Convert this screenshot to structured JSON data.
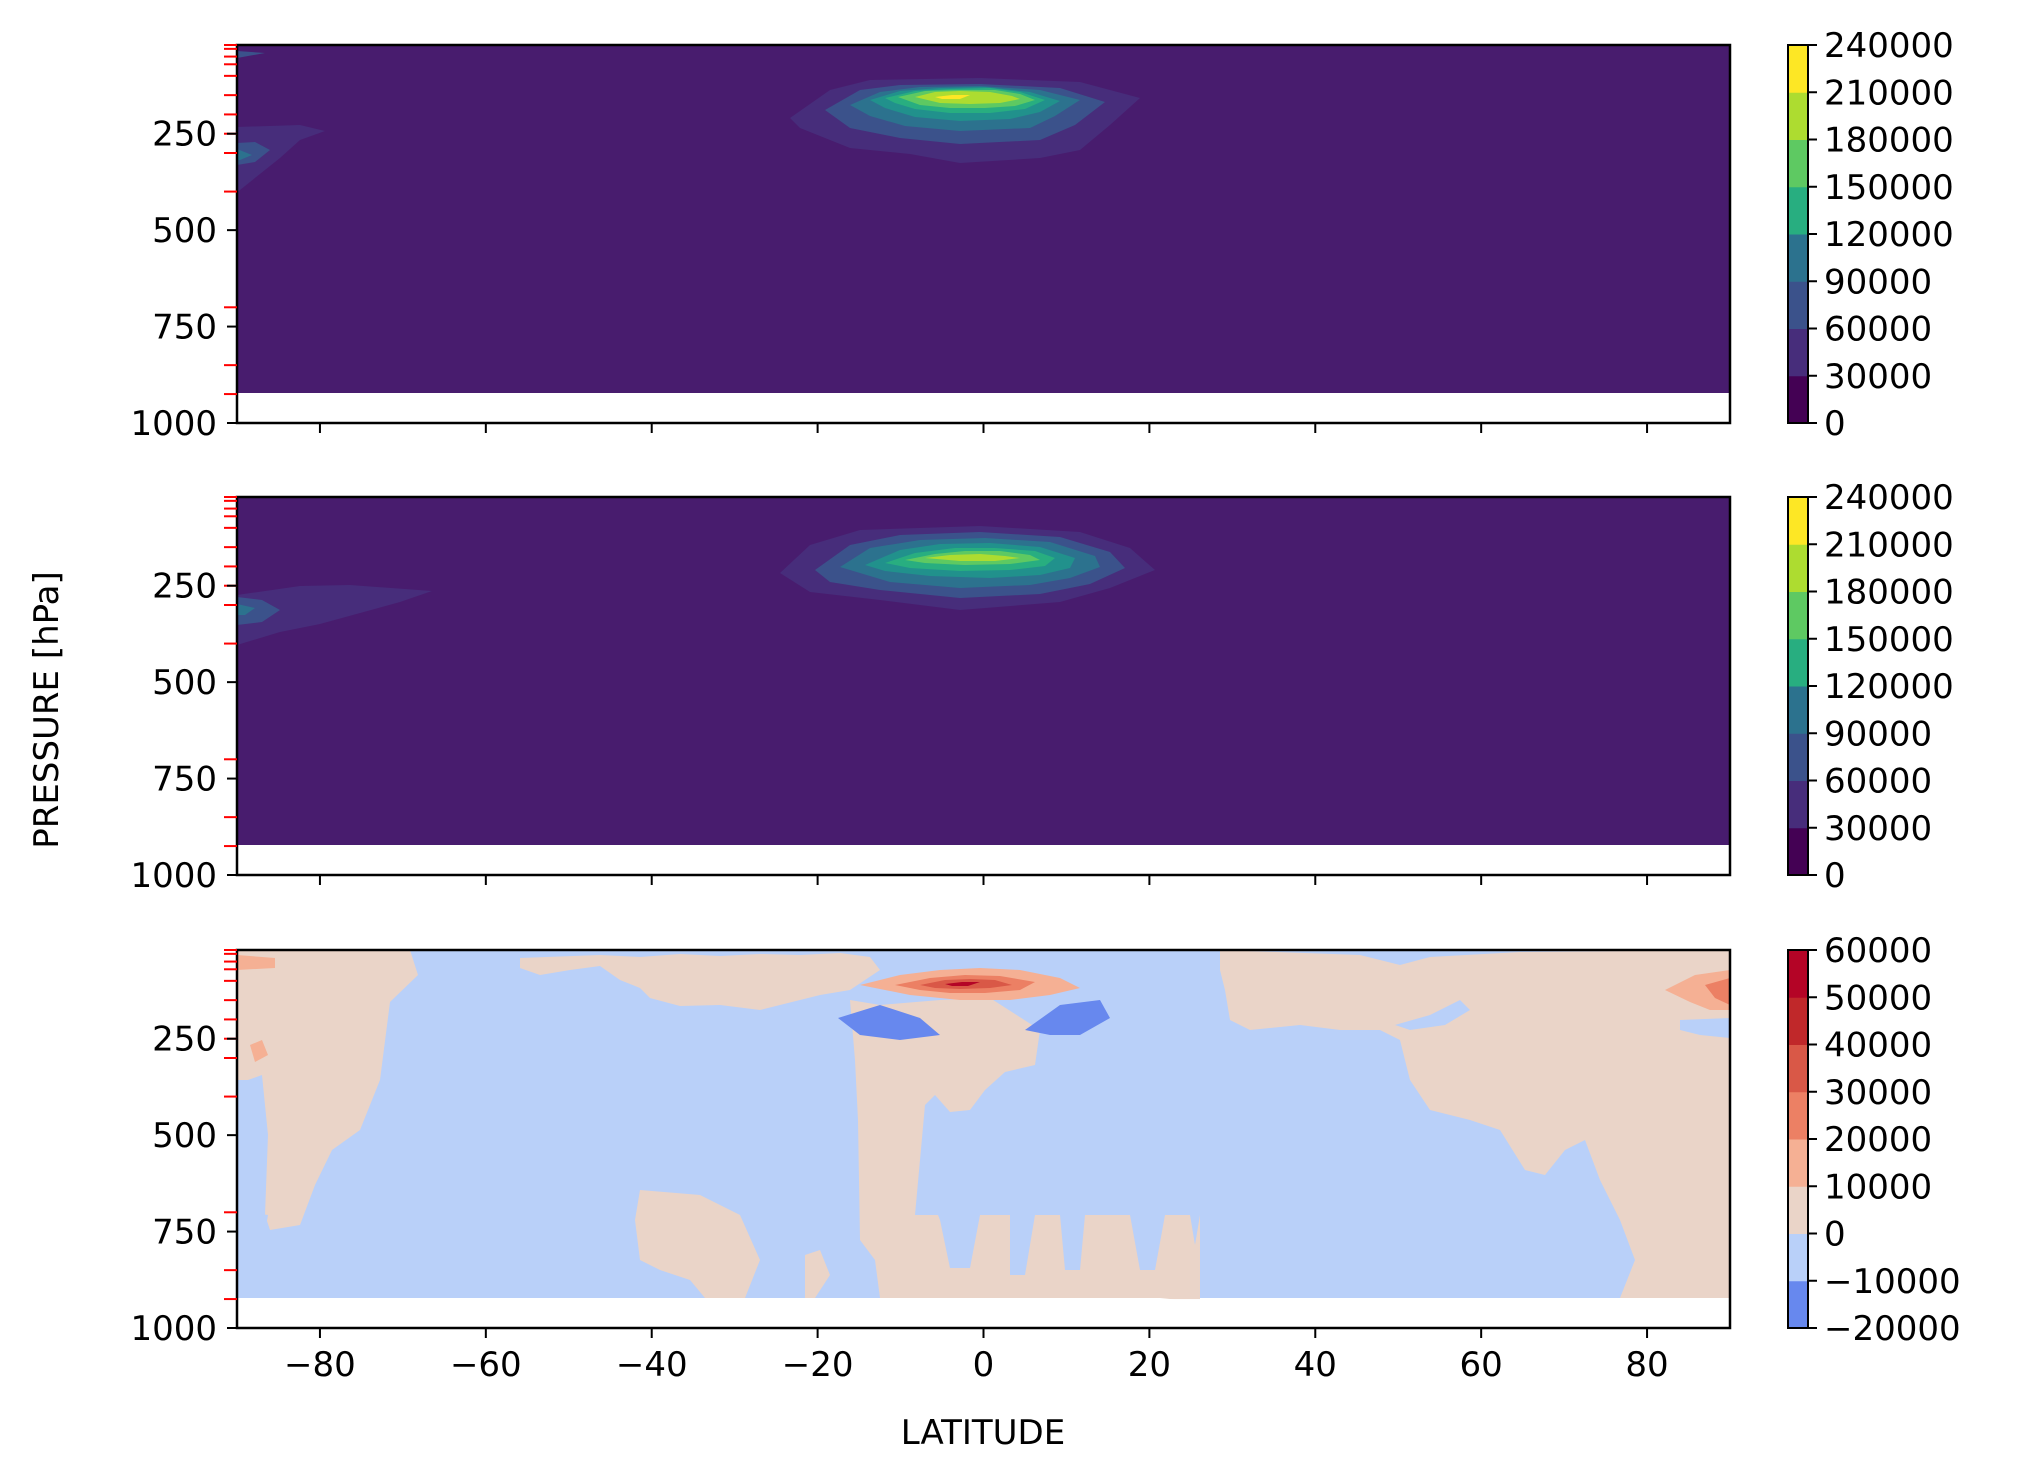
{
  "chart_data": [
    {
      "type": "contour",
      "panel": "top",
      "xlim": [
        -90,
        90
      ],
      "ylim": [
        1000,
        20
      ],
      "y_inverted": true,
      "x_ticks": [
        -80,
        -60,
        -40,
        -20,
        0,
        20,
        40,
        60,
        80
      ],
      "y_ticks": [
        250,
        500,
        750,
        1000
      ],
      "y_tick_labels": [
        "250",
        "500",
        "750",
        "1000"
      ],
      "pressure_levels_marked": [
        20,
        30,
        50,
        70,
        100,
        150,
        200,
        250,
        300,
        400,
        700,
        850,
        925
      ],
      "data_bottom_pressure": 925,
      "colormap": "viridis",
      "colorbar_levels": [
        0,
        30000,
        60000,
        90000,
        120000,
        150000,
        180000,
        210000,
        240000
      ],
      "colorbar_tick_labels": [
        "0",
        "30000",
        "60000",
        "90000",
        "120000",
        "150000",
        "180000",
        "210000",
        "240000"
      ],
      "features": [
        {
          "kind": "maximum",
          "lat": -3,
          "pressure": 150,
          "peak": 225000
        },
        {
          "kind": "maximum",
          "lat": -90,
          "pressure": 300,
          "peak": 100000
        }
      ]
    },
    {
      "type": "contour",
      "panel": "middle",
      "xlim": [
        -90,
        90
      ],
      "ylim": [
        1000,
        20
      ],
      "y_inverted": true,
      "x_ticks": [
        -80,
        -60,
        -40,
        -20,
        0,
        20,
        40,
        60,
        80
      ],
      "y_ticks": [
        250,
        500,
        750,
        1000
      ],
      "y_tick_labels": [
        "250",
        "500",
        "750",
        "1000"
      ],
      "pressure_levels_marked": [
        20,
        30,
        50,
        70,
        100,
        150,
        200,
        250,
        300,
        400,
        700,
        850,
        925
      ],
      "data_bottom_pressure": 925,
      "colormap": "viridis",
      "colorbar_levels": [
        0,
        30000,
        60000,
        90000,
        120000,
        150000,
        180000,
        210000,
        240000
      ],
      "colorbar_tick_labels": [
        "0",
        "30000",
        "60000",
        "90000",
        "120000",
        "150000",
        "180000",
        "210000",
        "240000"
      ],
      "features": [
        {
          "kind": "maximum",
          "lat": -2,
          "pressure": 150,
          "peak": 200000
        },
        {
          "kind": "maximum",
          "lat": -90,
          "pressure": 300,
          "peak": 100000
        }
      ]
    },
    {
      "type": "contour",
      "panel": "bottom",
      "xlim": [
        -90,
        90
      ],
      "ylim": [
        1000,
        20
      ],
      "y_inverted": true,
      "x_ticks": [
        -80,
        -60,
        -40,
        -20,
        0,
        20,
        40,
        60,
        80
      ],
      "x_tick_labels": [
        "−80",
        "−60",
        "−40",
        "−20",
        "0",
        "20",
        "40",
        "60",
        "80"
      ],
      "y_ticks": [
        250,
        500,
        750,
        1000
      ],
      "y_tick_labels": [
        "250",
        "500",
        "750",
        "1000"
      ],
      "pressure_levels_marked": [
        20,
        30,
        50,
        70,
        100,
        150,
        200,
        250,
        300,
        400,
        700,
        850,
        925
      ],
      "data_bottom_pressure": 925,
      "colormap": "coolwarm",
      "colorbar_levels": [
        -20000,
        -10000,
        0,
        10000,
        20000,
        30000,
        40000,
        50000,
        60000
      ],
      "colorbar_tick_labels": [
        "−20000",
        "−10000",
        "0",
        "10000",
        "20000",
        "30000",
        "40000",
        "50000",
        "60000"
      ],
      "features": [
        {
          "kind": "maximum",
          "lat": -3,
          "pressure": 100,
          "peak": 55000
        },
        {
          "kind": "minimum",
          "lat": -12,
          "pressure": 200,
          "value": -15000
        },
        {
          "kind": "minimum",
          "lat": 10,
          "pressure": 200,
          "value": -15000
        },
        {
          "kind": "maximum",
          "lat": 88,
          "pressure": 100,
          "peak": 20000
        }
      ]
    }
  ],
  "labels": {
    "xlabel": "LATITUDE",
    "ylabel": "PRESSURE [hPa]"
  },
  "colors": {
    "viridis": [
      "#440154",
      "#472d7b",
      "#3b528b",
      "#2c728e",
      "#21918c",
      "#28ae80",
      "#5ec962",
      "#addc30",
      "#fde725"
    ],
    "coolwarm": [
      "#6788ee",
      "#b9d0f9",
      "#ead4c8",
      "#f5b094",
      "#ec8064",
      "#d95847",
      "#c0282a",
      "#b40426"
    ],
    "tick_marker": "#ff0000"
  }
}
